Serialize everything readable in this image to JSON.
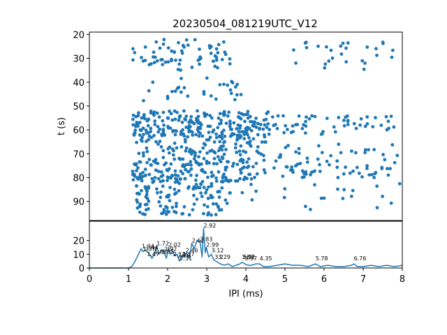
{
  "chart_data": [
    {
      "type": "scatter",
      "title": "20230504_081219UTC_V12",
      "xlabel": "",
      "ylabel": "t (s)",
      "xlim": [
        0,
        8
      ],
      "ylim": [
        98,
        19
      ],
      "y_inverted": true,
      "yticks": [
        20,
        30,
        40,
        50,
        60,
        70,
        80,
        90
      ],
      "color": "#1f77b4",
      "point_bands": [
        {
          "t_range": [
            22,
            35
          ],
          "ipi_range": [
            1.1,
            3.6
          ],
          "count": 70
        },
        {
          "t_range": [
            22,
            35
          ],
          "ipi_range": [
            5.2,
            7.8
          ],
          "count": 28
        },
        {
          "t_range": [
            38,
            48
          ],
          "ipi_range": [
            1.3,
            3.9
          ],
          "count": 30
        },
        {
          "t_range": [
            52,
            63
          ],
          "ipi_range": [
            1.1,
            4.6
          ],
          "count": 230
        },
        {
          "t_range": [
            54,
            62
          ],
          "ipi_range": [
            4.6,
            8.0
          ],
          "count": 55
        },
        {
          "t_range": [
            63,
            73
          ],
          "ipi_range": [
            1.2,
            4.6
          ],
          "count": 110
        },
        {
          "t_range": [
            66,
            74
          ],
          "ipi_range": [
            4.6,
            8.0
          ],
          "count": 30
        },
        {
          "t_range": [
            73,
            82
          ],
          "ipi_range": [
            1.1,
            4.2
          ],
          "count": 150
        },
        {
          "t_range": [
            74,
            80
          ],
          "ipi_range": [
            4.2,
            8.0
          ],
          "count": 50
        },
        {
          "t_range": [
            82,
            96
          ],
          "ipi_range": [
            1.2,
            3.4
          ],
          "count": 110
        },
        {
          "t_range": [
            82,
            94
          ],
          "ipi_range": [
            3.4,
            8.0
          ],
          "count": 25
        }
      ]
    },
    {
      "type": "line",
      "title": "",
      "xlabel": "IPI (ms)",
      "ylabel": "",
      "xlim": [
        0,
        8
      ],
      "ylim": [
        0,
        34
      ],
      "xticks": [
        0,
        1,
        2,
        3,
        4,
        5,
        6,
        7,
        8
      ],
      "yticks": [
        0,
        10,
        20
      ],
      "color": "#1f77b4",
      "x": [
        0,
        1.0,
        1.08,
        1.15,
        1.24,
        1.32,
        1.37,
        1.44,
        1.52,
        1.6,
        1.66,
        1.72,
        1.78,
        1.84,
        1.9,
        1.97,
        2.02,
        2.07,
        2.13,
        2.18,
        2.24,
        2.3,
        2.37,
        2.42,
        2.48,
        2.55,
        2.62,
        2.68,
        2.75,
        2.83,
        2.88,
        2.92,
        2.96,
        2.99,
        3.05,
        3.12,
        3.18,
        3.29,
        3.35,
        3.45,
        3.55,
        3.65,
        3.75,
        3.85,
        3.89,
        3.92,
        3.97,
        4.05,
        4.15,
        4.25,
        4.35,
        4.45,
        4.6,
        4.8,
        5.0,
        5.2,
        5.4,
        5.6,
        5.78,
        5.9,
        6.1,
        6.3,
        6.5,
        6.7,
        6.76,
        6.85,
        7.0,
        7.2,
        7.4,
        7.6,
        7.8,
        8.0
      ],
      "y": [
        0,
        0,
        1,
        4,
        9,
        14,
        12,
        13,
        11,
        7,
        10,
        16,
        10,
        13,
        12,
        7,
        15,
        10,
        12,
        9,
        10,
        5,
        9,
        8,
        11,
        7,
        18,
        14,
        20,
        19,
        8,
        29,
        11,
        15,
        8,
        10,
        6,
        4,
        3,
        2,
        3,
        1,
        2,
        3,
        4,
        4,
        3,
        2,
        2,
        3,
        3,
        1,
        1,
        2,
        3,
        2,
        2,
        1,
        3,
        1,
        2,
        1,
        1,
        2,
        3,
        1,
        1,
        2,
        1,
        2,
        1,
        2
      ],
      "peak_labels": [
        {
          "x": 1.34,
          "y": 14,
          "text": "1.34"
        },
        {
          "x": 1.37,
          "y": 12,
          "text": "1.37"
        },
        {
          "x": 1.44,
          "y": 13,
          "text": "1.44"
        },
        {
          "x": 1.47,
          "y": 8,
          "text": "1.47"
        },
        {
          "x": 1.66,
          "y": 10,
          "text": "1.66"
        },
        {
          "x": 1.72,
          "y": 16,
          "text": "1.72"
        },
        {
          "x": 1.85,
          "y": 10,
          "text": "1.85"
        },
        {
          "x": 1.92,
          "y": 12,
          "text": "1.92"
        },
        {
          "x": 2.02,
          "y": 15,
          "text": "2.02"
        },
        {
          "x": 2.14,
          "y": 8,
          "text": "2.14"
        },
        {
          "x": 2.26,
          "y": 7,
          "text": "2.26"
        },
        {
          "x": 2.31,
          "y": 5,
          "text": "2.31"
        },
        {
          "x": 2.37,
          "y": 8,
          "text": "2.37"
        },
        {
          "x": 2.46,
          "y": 11,
          "text": "2.46"
        },
        {
          "x": 2.62,
          "y": 18,
          "text": "2.62"
        },
        {
          "x": 2.83,
          "y": 19,
          "text": "2.83"
        },
        {
          "x": 2.92,
          "y": 29,
          "text": "2.92"
        },
        {
          "x": 2.99,
          "y": 15,
          "text": "2.99"
        },
        {
          "x": 3.12,
          "y": 11,
          "text": "3.12"
        },
        {
          "x": 3.2,
          "y": 6,
          "text": "3.2"
        },
        {
          "x": 3.29,
          "y": 6,
          "text": "3.29"
        },
        {
          "x": 3.89,
          "y": 6,
          "text": "3.89"
        },
        {
          "x": 3.92,
          "y": 6,
          "text": "3.92"
        },
        {
          "x": 3.97,
          "y": 5,
          "text": "3.97"
        },
        {
          "x": 4.35,
          "y": 5,
          "text": "4.35"
        },
        {
          "x": 5.78,
          "y": 5,
          "text": "5.78"
        },
        {
          "x": 6.76,
          "y": 5,
          "text": "6.76"
        }
      ]
    }
  ]
}
